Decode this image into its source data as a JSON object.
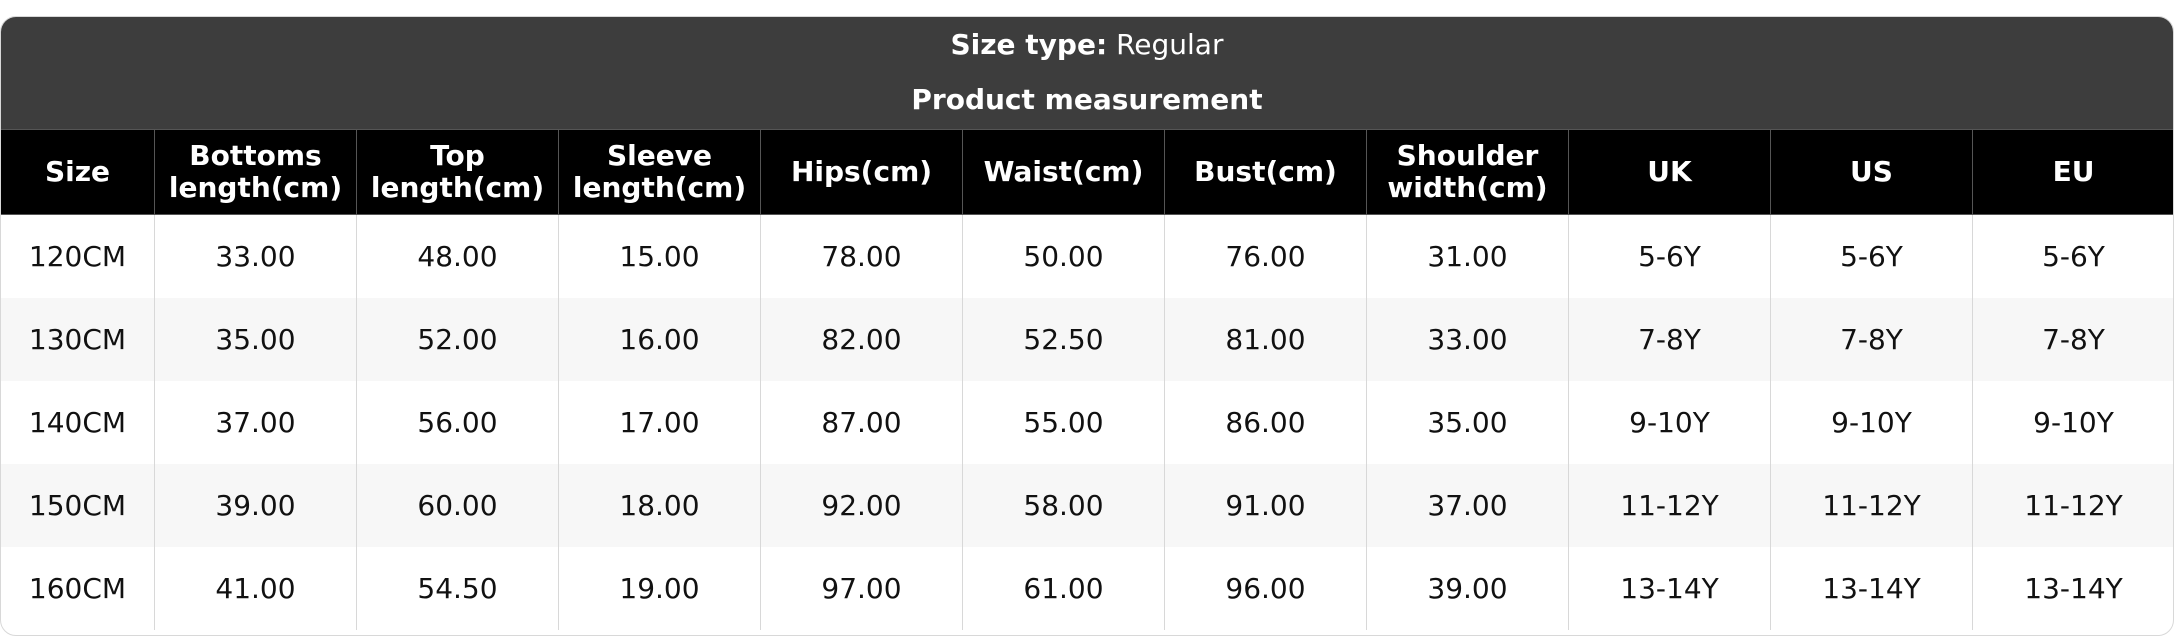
{
  "header": {
    "size_type_label": "Size type:",
    "size_type_value": "Regular",
    "title": "Product measurement"
  },
  "table": {
    "columns": [
      "Size",
      "Bottoms length(cm)",
      "Top length(cm)",
      "Sleeve length(cm)",
      "Hips(cm)",
      "Waist(cm)",
      "Bust(cm)",
      "Shoulder width(cm)",
      "UK",
      "US",
      "EU"
    ],
    "columns_lines": [
      [
        "Size"
      ],
      [
        "Bottoms",
        "length(cm)"
      ],
      [
        "Top",
        "length(cm)"
      ],
      [
        "Sleeve",
        "length(cm)"
      ],
      [
        "Hips(cm)"
      ],
      [
        "Waist(cm)"
      ],
      [
        "Bust(cm)"
      ],
      [
        "Shoulder",
        "width(cm)"
      ],
      [
        "UK"
      ],
      [
        "US"
      ],
      [
        "EU"
      ]
    ],
    "rows": [
      [
        "120CM",
        "33.00",
        "48.00",
        "15.00",
        "78.00",
        "50.00",
        "76.00",
        "31.00",
        "5-6Y",
        "5-6Y",
        "5-6Y"
      ],
      [
        "130CM",
        "35.00",
        "52.00",
        "16.00",
        "82.00",
        "52.50",
        "81.00",
        "33.00",
        "7-8Y",
        "7-8Y",
        "7-8Y"
      ],
      [
        "140CM",
        "37.00",
        "56.00",
        "17.00",
        "87.00",
        "55.00",
        "86.00",
        "35.00",
        "9-10Y",
        "9-10Y",
        "9-10Y"
      ],
      [
        "150CM",
        "39.00",
        "60.00",
        "18.00",
        "92.00",
        "58.00",
        "91.00",
        "37.00",
        "11-12Y",
        "11-12Y",
        "11-12Y"
      ],
      [
        "160CM",
        "41.00",
        "54.50",
        "19.00",
        "97.00",
        "61.00",
        "96.00",
        "39.00",
        "13-14Y",
        "13-14Y",
        "13-14Y"
      ]
    ]
  },
  "colors": {
    "title_bar": "#3d3d3d",
    "header_row": "#000000",
    "alt_row": "#f7f7f7"
  }
}
